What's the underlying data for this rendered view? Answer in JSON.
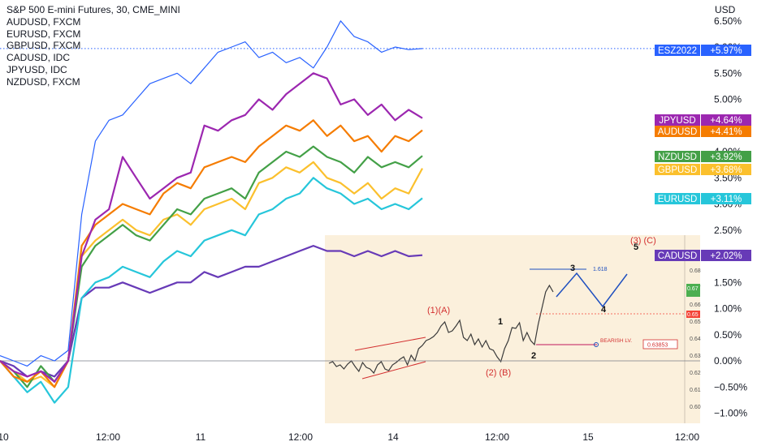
{
  "legend": {
    "title": "S&P 500 E-mini Futures, 30, CME_MINI",
    "entries": [
      "AUDUSD, FXCM",
      "EURUSD, FXCM",
      "GBPUSD, FXCM",
      "CADUSD, IDC",
      "JPYUSD, IDC",
      "NZDUSD, FXCM"
    ]
  },
  "axis_unit": "USD",
  "colors": {
    "ESZ2022": "#2962ff",
    "JPYUSD": "#9c27b0",
    "AUDUSD": "#f57c00",
    "NZDUSD": "#43a047",
    "GBPUSD": "#fbc02d",
    "EURUSD": "#26c6da",
    "CADUSD": "#673ab7",
    "inset_bg": "#fbf0dc",
    "wave_label": "#d32f2f"
  },
  "chart_data": {
    "type": "line",
    "title": "S&P 500 E-mini Futures, 30, CME_MINI",
    "ylabel": "USD",
    "ylim": [
      -1.25,
      6.75
    ],
    "y_ticks": [
      "6.50%",
      "6.00%",
      "5.50%",
      "5.00%",
      "4.50%",
      "4.00%",
      "3.50%",
      "3.00%",
      "2.50%",
      "2.00%",
      "1.50%",
      "1.00%",
      "0.50%",
      "0.00%",
      "−0.50%",
      "−1.00%"
    ],
    "x_ticks": [
      "10",
      "12:00",
      "11",
      "12:00",
      "14",
      "12:00",
      "15",
      "12:00"
    ],
    "grid": false,
    "series": [
      {
        "name": "ESZ2022",
        "last": "+5.97%",
        "values": [
          0.1,
          0.0,
          -0.1,
          0.1,
          0.0,
          0.2,
          2.8,
          4.2,
          4.6,
          4.7,
          5.0,
          5.3,
          5.4,
          5.5,
          5.3,
          5.6,
          5.9,
          6.0,
          6.1,
          5.8,
          5.9,
          5.7,
          5.8,
          5.6,
          6.0,
          6.5,
          6.2,
          6.1,
          5.9,
          6.0,
          5.95,
          5.97
        ]
      },
      {
        "name": "JPYUSD",
        "last": "+4.64%",
        "values": [
          0.0,
          -0.2,
          -0.3,
          -0.2,
          -0.4,
          0.0,
          2.0,
          2.7,
          2.9,
          3.9,
          3.5,
          3.1,
          3.3,
          3.5,
          3.6,
          4.5,
          4.4,
          4.6,
          4.7,
          5.0,
          4.8,
          5.1,
          5.3,
          5.5,
          5.4,
          4.9,
          5.0,
          4.7,
          4.9,
          4.6,
          4.8,
          4.64
        ]
      },
      {
        "name": "AUDUSD",
        "last": "+4.41%",
        "values": [
          0.0,
          -0.3,
          -0.4,
          -0.2,
          -0.5,
          0.0,
          2.2,
          2.6,
          2.8,
          3.0,
          2.9,
          2.8,
          3.2,
          3.4,
          3.3,
          3.7,
          3.8,
          3.9,
          3.8,
          4.1,
          4.3,
          4.5,
          4.4,
          4.6,
          4.3,
          4.5,
          4.2,
          4.3,
          4.0,
          4.3,
          4.2,
          4.41
        ]
      },
      {
        "name": "NZDUSD",
        "last": "+3.92%",
        "values": [
          0.0,
          -0.2,
          -0.5,
          -0.1,
          -0.4,
          0.0,
          1.8,
          2.2,
          2.4,
          2.6,
          2.4,
          2.3,
          2.6,
          2.9,
          2.8,
          3.1,
          3.2,
          3.3,
          3.1,
          3.6,
          3.8,
          4.0,
          3.9,
          4.1,
          3.9,
          3.8,
          3.6,
          3.9,
          3.7,
          3.8,
          3.7,
          3.92
        ]
      },
      {
        "name": "GBPUSD",
        "last": "+3.68%",
        "values": [
          0.0,
          -0.2,
          -0.4,
          -0.3,
          -0.5,
          0.0,
          2.0,
          2.3,
          2.5,
          2.7,
          2.5,
          2.4,
          2.7,
          2.8,
          2.6,
          2.9,
          3.0,
          3.1,
          2.9,
          3.4,
          3.5,
          3.7,
          3.6,
          3.8,
          3.5,
          3.4,
          3.2,
          3.4,
          3.1,
          3.3,
          3.2,
          3.68
        ]
      },
      {
        "name": "EURUSD",
        "last": "+3.11%",
        "values": [
          0.0,
          -0.3,
          -0.6,
          -0.4,
          -0.8,
          -0.5,
          1.2,
          1.5,
          1.6,
          1.8,
          1.7,
          1.6,
          1.9,
          2.1,
          2.0,
          2.3,
          2.4,
          2.5,
          2.4,
          2.8,
          2.9,
          3.1,
          3.2,
          3.5,
          3.3,
          3.2,
          3.0,
          3.1,
          2.9,
          3.0,
          2.9,
          3.11
        ]
      },
      {
        "name": "CADUSD",
        "last": "+2.02%",
        "values": [
          0.0,
          -0.1,
          -0.3,
          -0.2,
          -0.3,
          0.0,
          1.2,
          1.4,
          1.4,
          1.5,
          1.4,
          1.3,
          1.4,
          1.5,
          1.5,
          1.7,
          1.6,
          1.7,
          1.8,
          1.8,
          1.9,
          2.0,
          2.1,
          2.2,
          2.1,
          2.1,
          2.0,
          2.1,
          2.0,
          2.1,
          2.0,
          2.02
        ]
      }
    ]
  },
  "dotted_level": "5.97%",
  "inset": {
    "price_ticks": [
      "0.68",
      "0.67",
      "0.66",
      "0.65",
      "0.64",
      "0.63",
      "0.62",
      "0.61",
      "0.60"
    ],
    "current_price": "0.67",
    "current_badge": "0.65",
    "bearish_label": "BEARISH LV.",
    "bearish_value": "0.63853",
    "fib_label": "1.618",
    "wave_labels_red": [
      "(3) (C)",
      "(1)(A)",
      "(2) (B)"
    ],
    "wave_labels_black": [
      "5",
      "3",
      "1",
      "2",
      "4"
    ]
  }
}
